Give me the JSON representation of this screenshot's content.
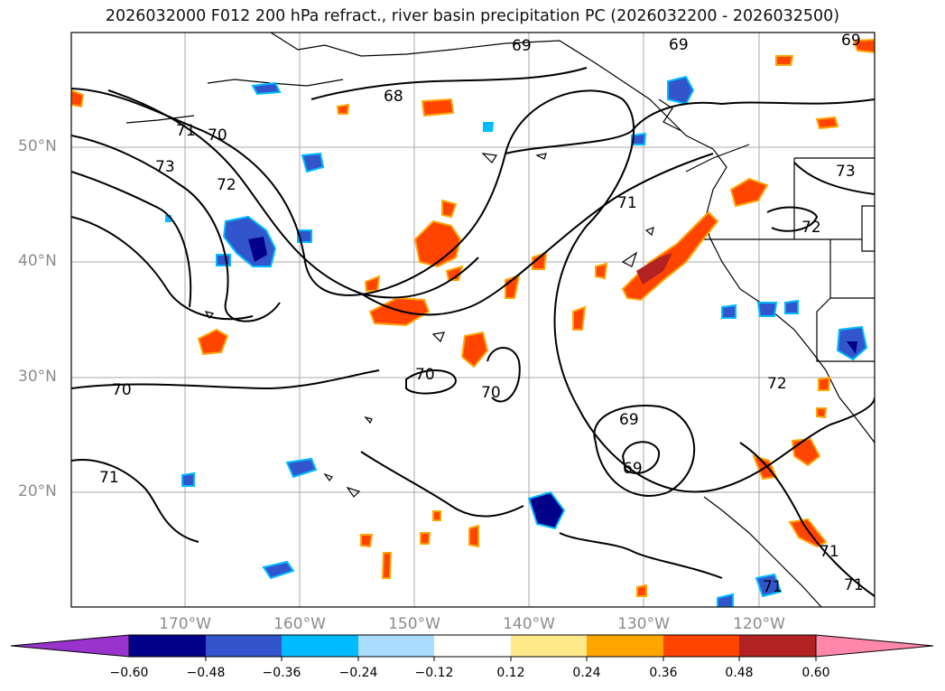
{
  "title": "2026032000 F012 200 hPa refract., river basin precipitation PC (2026032200 - 2026032500)",
  "lat_labels": [
    "50°N",
    "40°N",
    "30°N",
    "20°N"
  ],
  "lon_labels": [
    "170°W",
    "160°W",
    "150°W",
    "140°W",
    "130°W",
    "120°W"
  ],
  "contour_labels": [
    "69",
    "69",
    "69",
    "68",
    "71",
    "70",
    "73",
    "72",
    "71",
    "73",
    "72",
    "70",
    "70",
    "70",
    "69",
    "69",
    "72",
    "71",
    "71",
    "71",
    "71"
  ],
  "colorbar": {
    "ticks": [
      "−0.60",
      "−0.48",
      "−0.36",
      "−0.24",
      "−0.12",
      "0.12",
      "0.24",
      "0.36",
      "0.48",
      "0.60"
    ],
    "colors": [
      "#9933cc",
      "#000088",
      "#3355cc",
      "#00bbff",
      "#aaddff",
      "#ffffff",
      "#ffe988",
      "#ffa500",
      "#ff4400",
      "#b22222",
      "#ff88aa"
    ]
  },
  "colors": {
    "land_outline": "#000000",
    "contour": "#000000",
    "grid": "#aaaaaa"
  }
}
